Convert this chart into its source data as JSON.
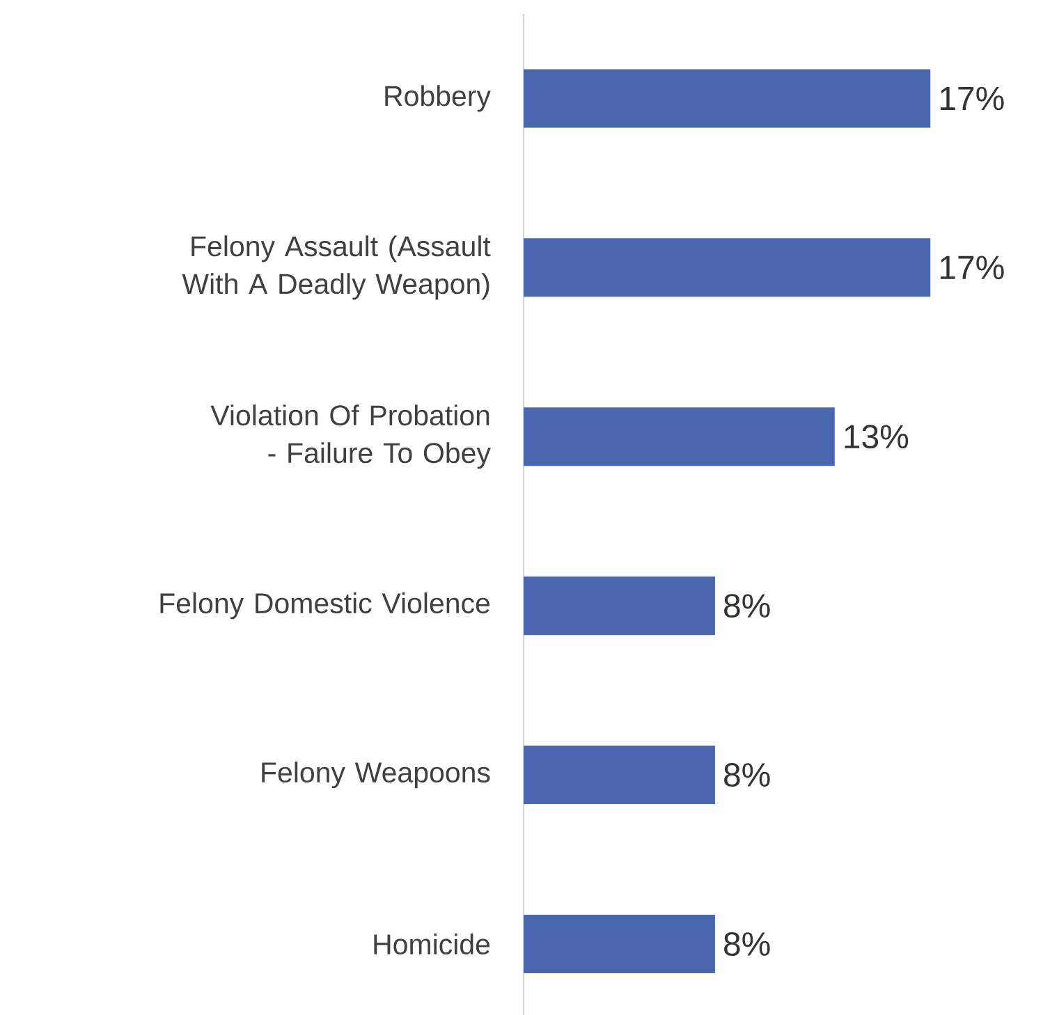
{
  "chart_data": {
    "type": "bar",
    "orientation": "horizontal",
    "categories": [
      "Robbery",
      "Felony Assault (Assault With A Deadly Weapon)",
      "Violation Of Probation - Failure To Obey",
      "Felony Domestic Violence",
      "Felony Weapoons",
      "Homicide"
    ],
    "values": [
      17,
      17,
      13,
      8,
      8,
      8
    ],
    "value_labels": [
      "17%",
      "17%",
      "13%",
      "8%",
      "8%",
      "8%"
    ],
    "color": "#4a66ac"
  }
}
